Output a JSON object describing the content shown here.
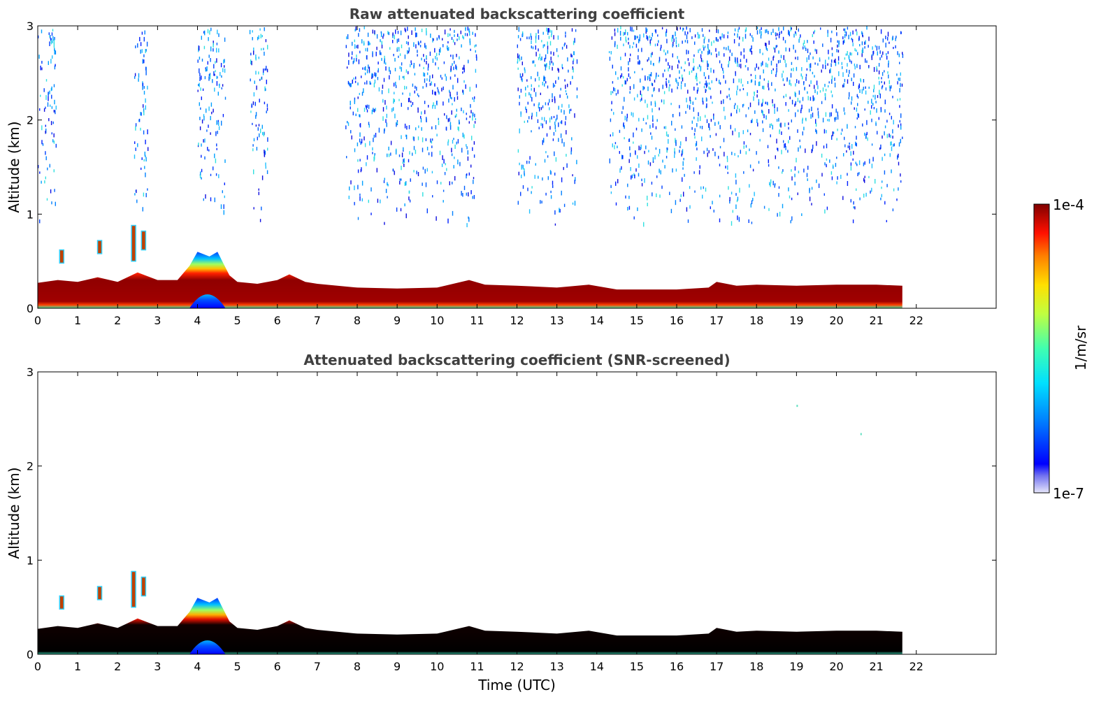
{
  "chart_data": [
    {
      "type": "heatmap",
      "title": "Raw attenuated backscattering coefficient",
      "xlabel": "",
      "ylabel": "Altitude (km)",
      "xlim": [
        0,
        24
      ],
      "ylim": [
        0,
        3
      ],
      "xticks": [
        "0",
        "1",
        "2",
        "3",
        "4",
        "5",
        "6",
        "7",
        "8",
        "9",
        "10",
        "11",
        "12",
        "13",
        "14",
        "15",
        "16",
        "17",
        "18",
        "19",
        "20",
        "21",
        "22"
      ],
      "yticks": [
        "0",
        "1",
        "2",
        "3"
      ],
      "data_end_hour": 21.65,
      "boundary_layer_top_km": [
        [
          0,
          0.27
        ],
        [
          0.5,
          0.3
        ],
        [
          1,
          0.28
        ],
        [
          1.5,
          0.33
        ],
        [
          2,
          0.28
        ],
        [
          2.5,
          0.38
        ],
        [
          3,
          0.3
        ],
        [
          3.5,
          0.3
        ],
        [
          3.8,
          0.45
        ],
        [
          4,
          0.6
        ],
        [
          4.3,
          0.55
        ],
        [
          4.5,
          0.6
        ],
        [
          4.8,
          0.35
        ],
        [
          5,
          0.28
        ],
        [
          5.5,
          0.26
        ],
        [
          6,
          0.3
        ],
        [
          6.3,
          0.36
        ],
        [
          6.7,
          0.28
        ],
        [
          7,
          0.26
        ],
        [
          8,
          0.22
        ],
        [
          9,
          0.21
        ],
        [
          10,
          0.22
        ],
        [
          10.8,
          0.3
        ],
        [
          11.2,
          0.25
        ],
        [
          12,
          0.24
        ],
        [
          13,
          0.22
        ],
        [
          13.8,
          0.25
        ],
        [
          14.5,
          0.2
        ],
        [
          16,
          0.2
        ],
        [
          16.8,
          0.22
        ],
        [
          17,
          0.28
        ],
        [
          17.5,
          0.24
        ],
        [
          18,
          0.25
        ],
        [
          19,
          0.24
        ],
        [
          20,
          0.25
        ],
        [
          21,
          0.25
        ],
        [
          21.65,
          0.24
        ]
      ],
      "elevated_layers": [
        {
          "hour": 0.6,
          "bottom_km": 0.48,
          "top_km": 0.62
        },
        {
          "hour": 1.55,
          "bottom_km": 0.58,
          "top_km": 0.72
        },
        {
          "hour": 2.4,
          "bottom_km": 0.5,
          "top_km": 0.88
        },
        {
          "hour": 2.65,
          "bottom_km": 0.62,
          "top_km": 0.82
        }
      ],
      "aerosol_plume": {
        "hour_start": 3.8,
        "hour_end": 4.7,
        "bottom_km": 0.0,
        "top_km": 0.25
      },
      "noise_regions_hours": [
        [
          0,
          0.45
        ],
        [
          2.4,
          2.75
        ],
        [
          4.0,
          4.7
        ],
        [
          5.3,
          5.75
        ],
        [
          7.7,
          11.0
        ],
        [
          12.0,
          13.5
        ],
        [
          14.3,
          21.65
        ]
      ]
    },
    {
      "type": "heatmap",
      "title": "Attenuated backscattering coefficient (SNR-screened)",
      "xlabel": "Time (UTC)",
      "ylabel": "Altitude (km)",
      "xlim": [
        0,
        24
      ],
      "ylim": [
        0,
        3
      ],
      "xticks": [
        "0",
        "1",
        "2",
        "3",
        "4",
        "5",
        "6",
        "7",
        "8",
        "9",
        "10",
        "11",
        "12",
        "13",
        "14",
        "15",
        "16",
        "17",
        "18",
        "19",
        "20",
        "21",
        "22"
      ],
      "yticks": [
        "0",
        "1",
        "2",
        "3"
      ],
      "data_end_hour": 21.65,
      "screened_specks": [
        {
          "hour": 20.6,
          "km": 2.35
        },
        {
          "hour": 19.0,
          "km": 2.65
        }
      ]
    }
  ],
  "colorbar": {
    "label": "1/m/sr",
    "max_label": "1e-4",
    "min_label": "1e-7",
    "scale": "log",
    "colormap": "jet"
  }
}
